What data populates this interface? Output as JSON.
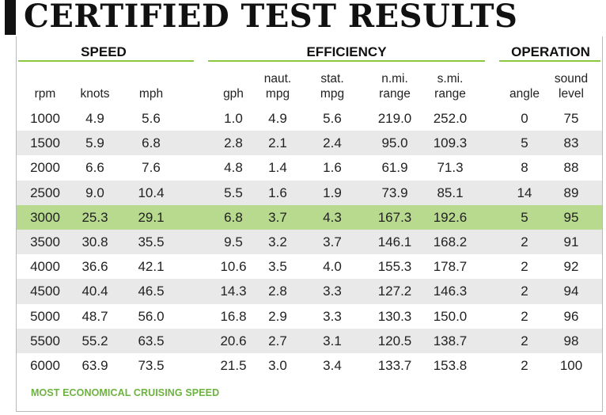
{
  "title": "CERTIFIED TEST RESULTS",
  "groups": {
    "speed": "SPEED",
    "efficiency": "EFFICIENCY",
    "operation": "OPERATION"
  },
  "columns": [
    "rpm",
    "knots",
    "mph",
    "gph",
    "naut.\nmpg",
    "stat.\nmpg",
    "n.mi.\nrange",
    "s.mi.\nrange",
    "angle",
    "sound\nlevel"
  ],
  "rows": [
    [
      "1000",
      "4.9",
      "5.6",
      "1.0",
      "4.9",
      "5.6",
      "219.0",
      "252.0",
      "0",
      "75"
    ],
    [
      "1500",
      "5.9",
      "6.8",
      "2.8",
      "2.1",
      "2.4",
      "95.0",
      "109.3",
      "5",
      "83"
    ],
    [
      "2000",
      "6.6",
      "7.6",
      "4.8",
      "1.4",
      "1.6",
      "61.9",
      "71.3",
      "8",
      "88"
    ],
    [
      "2500",
      "9.0",
      "10.4",
      "5.5",
      "1.6",
      "1.9",
      "73.9",
      "85.1",
      "14",
      "89"
    ],
    [
      "3000",
      "25.3",
      "29.1",
      "6.8",
      "3.7",
      "4.3",
      "167.3",
      "192.6",
      "5",
      "95"
    ],
    [
      "3500",
      "30.8",
      "35.5",
      "9.5",
      "3.2",
      "3.7",
      "146.1",
      "168.2",
      "2",
      "91"
    ],
    [
      "4000",
      "36.6",
      "42.1",
      "10.6",
      "3.5",
      "4.0",
      "155.3",
      "178.7",
      "2",
      "92"
    ],
    [
      "4500",
      "40.4",
      "46.5",
      "14.3",
      "2.8",
      "3.3",
      "127.2",
      "146.3",
      "2",
      "94"
    ],
    [
      "5000",
      "48.7",
      "56.0",
      "16.8",
      "2.9",
      "3.3",
      "130.3",
      "150.0",
      "2",
      "96"
    ],
    [
      "5500",
      "55.2",
      "63.5",
      "20.6",
      "2.7",
      "3.1",
      "120.5",
      "138.7",
      "2",
      "98"
    ],
    [
      "6000",
      "63.9",
      "73.5",
      "21.5",
      "3.0",
      "3.4",
      "133.7",
      "153.8",
      "2",
      "100"
    ]
  ],
  "highlight_row": 4,
  "legend": "MOST ECONOMICAL CRUISING SPEED",
  "colors": {
    "accent": "#8dc63f",
    "highlight": "#b7da8e",
    "stripe": "#e9e9e9",
    "legend_text": "#6cb33f"
  }
}
